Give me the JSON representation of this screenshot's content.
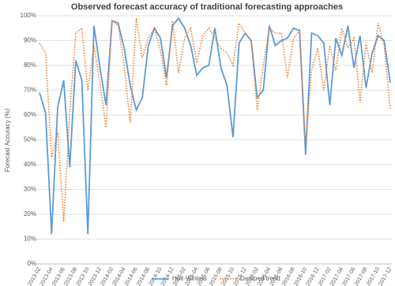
{
  "chart_data": {
    "type": "line",
    "title": "Observed forecast accuracy of traditional forecasting approaches",
    "y_label": "Forecast Accuracy (%)",
    "categories": [
      "2013-02",
      null,
      "2013-04",
      null,
      "2013-06",
      null,
      "2013-08",
      null,
      "2013-10",
      null,
      "2013-12",
      null,
      "2014-02",
      null,
      "2014-04",
      null,
      "2014-06",
      null,
      "2014-08",
      null,
      "2014-10",
      null,
      "2014-12",
      null,
      "2015-02",
      null,
      "2015-04",
      null,
      "2015-06",
      null,
      "2015-08",
      null,
      "2015-10",
      null,
      "2015-12",
      null,
      "2016-02",
      null,
      "2016-04",
      null,
      "2016-06",
      null,
      "2016-08",
      null,
      "2016-10",
      null,
      "2016-12",
      null,
      "2017-02",
      null,
      "2017-04",
      null,
      "2017-06",
      null,
      "2017-08",
      null,
      "2017-10",
      null,
      "2017-12"
    ],
    "series": [
      {
        "name": "Holt-Winters",
        "color": "#5b9bd5",
        "dash": "solid",
        "values": [
          69,
          61,
          12,
          63,
          74,
          39,
          82,
          74,
          12,
          96,
          79,
          64,
          98,
          97,
          87,
          72,
          62,
          67,
          88,
          95,
          91,
          75,
          96,
          99,
          95,
          88,
          76,
          79,
          80,
          95,
          79,
          72,
          51,
          89,
          93,
          90,
          67,
          70,
          96,
          88,
          90,
          91,
          95,
          94,
          44,
          93,
          92,
          89,
          64,
          91,
          84,
          96,
          79,
          92,
          71,
          85,
          92,
          90,
          73
        ]
      },
      {
        "name": "Damped trend",
        "color": "#ed7d31",
        "dash": "dotted",
        "values": [
          89,
          85,
          43,
          53,
          17,
          61,
          93,
          95,
          70,
          88,
          73,
          55,
          98,
          96,
          80,
          57,
          99,
          83,
          91,
          95,
          86,
          72,
          98,
          77,
          91,
          95,
          81,
          92,
          95,
          91,
          87,
          85,
          80,
          97,
          93,
          90,
          62,
          80,
          95,
          93,
          93,
          75,
          91,
          94,
          48,
          78,
          87,
          70,
          88,
          78,
          95,
          87,
          91,
          65,
          89,
          77,
          97,
          88,
          62
        ]
      }
    ],
    "ylim": [
      0,
      100
    ],
    "yticks": [
      {
        "value": 0,
        "label": "0%"
      },
      {
        "value": 10,
        "label": "10%"
      },
      {
        "value": 20,
        "label": "20%"
      },
      {
        "value": 30,
        "label": "30%"
      },
      {
        "value": 40,
        "label": "40%"
      },
      {
        "value": 50,
        "label": "50%"
      },
      {
        "value": 60,
        "label": "60%"
      },
      {
        "value": 70,
        "label": "70%"
      },
      {
        "value": 80,
        "label": "80%"
      },
      {
        "value": 90,
        "label": "90%"
      },
      {
        "value": 100,
        "label": "100%"
      }
    ],
    "grid": true,
    "legend": "bottom"
  }
}
